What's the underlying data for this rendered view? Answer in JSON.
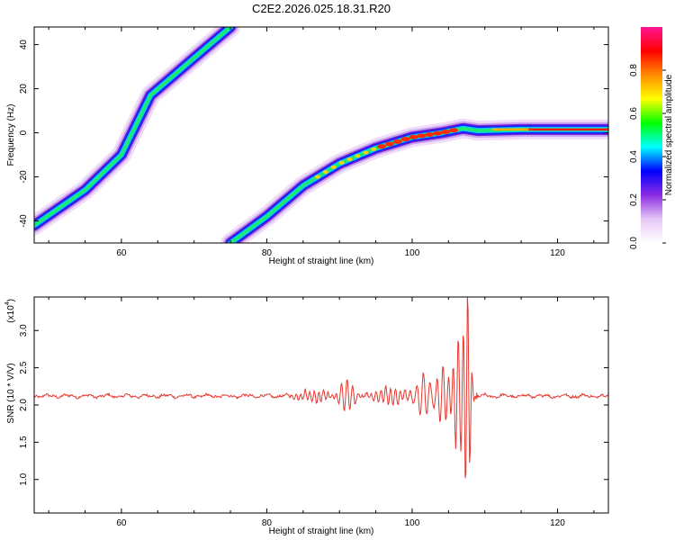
{
  "title": "C2E2.2026.025.18.31.R20",
  "chart_data": [
    {
      "type": "heatmap",
      "title": "C2E2.2026.025.18.31.R20",
      "xlabel": "Height of straight line (km)",
      "ylabel": "Frequency (Hz)",
      "xlim": [
        48,
        127
      ],
      "ylim": [
        -50,
        48
      ],
      "xticks": [
        60,
        80,
        100,
        120
      ],
      "yticks": [
        -40,
        -20,
        0,
        20,
        40
      ],
      "xtick_labels": [
        "60",
        "80",
        "100",
        "120"
      ],
      "ytick_labels": [
        "-40",
        "-20",
        "0",
        "20",
        "40"
      ],
      "tracks": [
        {
          "name": "steep ridge",
          "points": [
            [
              48,
              -42
            ],
            [
              55,
              -26
            ],
            [
              60,
              -10
            ],
            [
              64,
              17
            ],
            [
              70,
              34
            ],
            [
              75,
              48
            ]
          ]
        },
        {
          "name": "curved ridge",
          "points": [
            [
              75,
              -50
            ],
            [
              80,
              -38
            ],
            [
              85,
              -24
            ],
            [
              90,
              -14
            ],
            [
              95,
              -7
            ],
            [
              100,
              -2
            ],
            [
              104,
              0
            ],
            [
              107,
              2
            ],
            [
              109,
              1
            ],
            [
              115,
              1.5
            ],
            [
              127,
              1.5
            ]
          ]
        }
      ],
      "colorbar": {
        "label": "Normalized spectral amplitude",
        "range": [
          0,
          1
        ],
        "ticks": [
          0.0,
          0.2,
          0.4,
          0.6,
          0.8
        ],
        "tick_labels": [
          "0.0",
          "0.2",
          "0.4",
          "0.6",
          "0.8"
        ],
        "colors": [
          "#ffffff",
          "#e6c8f5",
          "#8a2be2",
          "#0000ff",
          "#00ffff",
          "#00ff00",
          "#ffff00",
          "#ff8c00",
          "#ff0000",
          "#ff1493"
        ]
      }
    },
    {
      "type": "line",
      "xlabel": "Height of straight line (km)",
      "ylabel": "SNR (10 * V/V)",
      "scale_label": "(x10",
      "scale_exponent": "4",
      "scale_suffix": ")",
      "xlim": [
        48,
        127
      ],
      "ylim": [
        0.55,
        3.45
      ],
      "xticks": [
        60,
        80,
        100,
        120
      ],
      "yticks": [
        1.0,
        1.5,
        2.0,
        2.5,
        3.0
      ],
      "xtick_labels": [
        "60",
        "80",
        "100",
        "120"
      ],
      "ytick_labels": [
        "1.0",
        "1.5",
        "2.0",
        "2.5",
        "3.0"
      ],
      "series": [
        {
          "name": "SNR",
          "color": "#e8362e",
          "baseline": 2.12,
          "x_start": 48,
          "x_end": 127,
          "step": 0.1,
          "events": [
            {
              "x": 86.5,
              "amp": 0.08,
              "width": 2.5,
              "freq": 1.6
            },
            {
              "x": 91.0,
              "amp": 0.22,
              "width": 1.2,
              "freq": 1.3
            },
            {
              "x": 97.0,
              "amp": 0.12,
              "width": 2.5,
              "freq": 1.5
            },
            {
              "x": 101.5,
              "amp": 0.3,
              "width": 1.2,
              "freq": 1.1
            },
            {
              "x": 104.2,
              "amp": 0.4,
              "width": 1.0,
              "freq": 1.2
            },
            {
              "x": 106.3,
              "amp": 0.8,
              "width": 0.9,
              "freq": 1.4
            },
            {
              "x": 107.6,
              "amp": 1.4,
              "width": 0.55,
              "freq": 1.6
            }
          ],
          "cutoff_after": 109.0
        }
      ]
    }
  ]
}
